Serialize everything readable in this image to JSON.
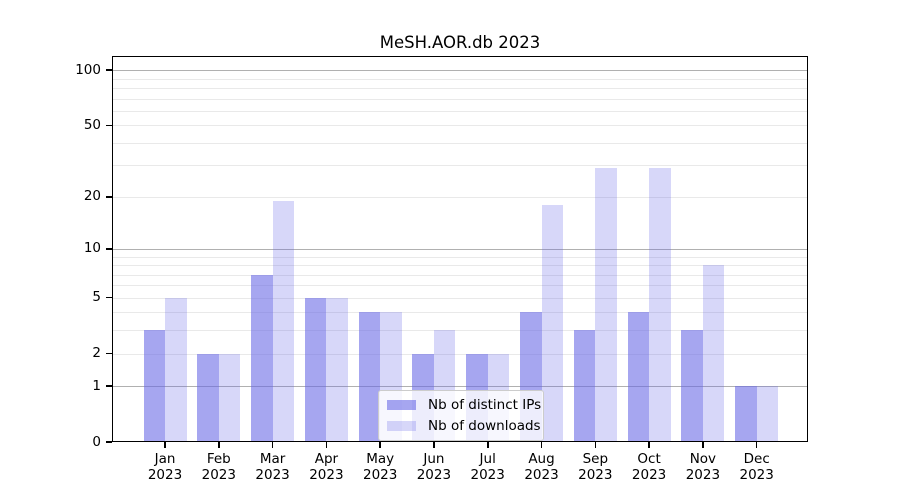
{
  "chart_data": {
    "type": "bar",
    "title": "MeSH.AOR.db 2023",
    "categories": [
      "Jan 2023",
      "Feb 2023",
      "Mar 2023",
      "Apr 2023",
      "May 2023",
      "Jun 2023",
      "Jul 2023",
      "Aug 2023",
      "Sep 2023",
      "Oct 2023",
      "Nov 2023",
      "Dec 2023"
    ],
    "series": [
      {
        "name": "Nb of distinct IPs",
        "color": "rgba(102,102,230,0.58)",
        "values": [
          3,
          2,
          7,
          5,
          4,
          2,
          2,
          4,
          3,
          4,
          3,
          1
        ]
      },
      {
        "name": "Nb of downloads",
        "color": "rgba(102,102,230,0.26)",
        "values": [
          5,
          2,
          19,
          5,
          4,
          3,
          2,
          18,
          29,
          29,
          8,
          1
        ]
      }
    ],
    "xlabel": "",
    "ylabel": "",
    "yscale": "log10(1+value)",
    "ylim": [
      0,
      118
    ],
    "yticks": [
      0,
      1,
      2,
      5,
      10,
      20,
      50,
      100
    ],
    "major_gridline_values": [
      1,
      10,
      100
    ],
    "minor_gridline_values": [
      2,
      3,
      4,
      5,
      6,
      7,
      8,
      9,
      20,
      30,
      40,
      50,
      60,
      70,
      80,
      90
    ],
    "grid": "on",
    "legend_position": "inside lower-center",
    "colors": {
      "major_grid": "#b0b0b0",
      "minor_grid": "#e9e9e9",
      "axis": "#000000",
      "background": "#ffffff",
      "bar_ips_rendered": "#a6a6f0",
      "bar_downloads_rendered": "#d8d8f8"
    }
  }
}
